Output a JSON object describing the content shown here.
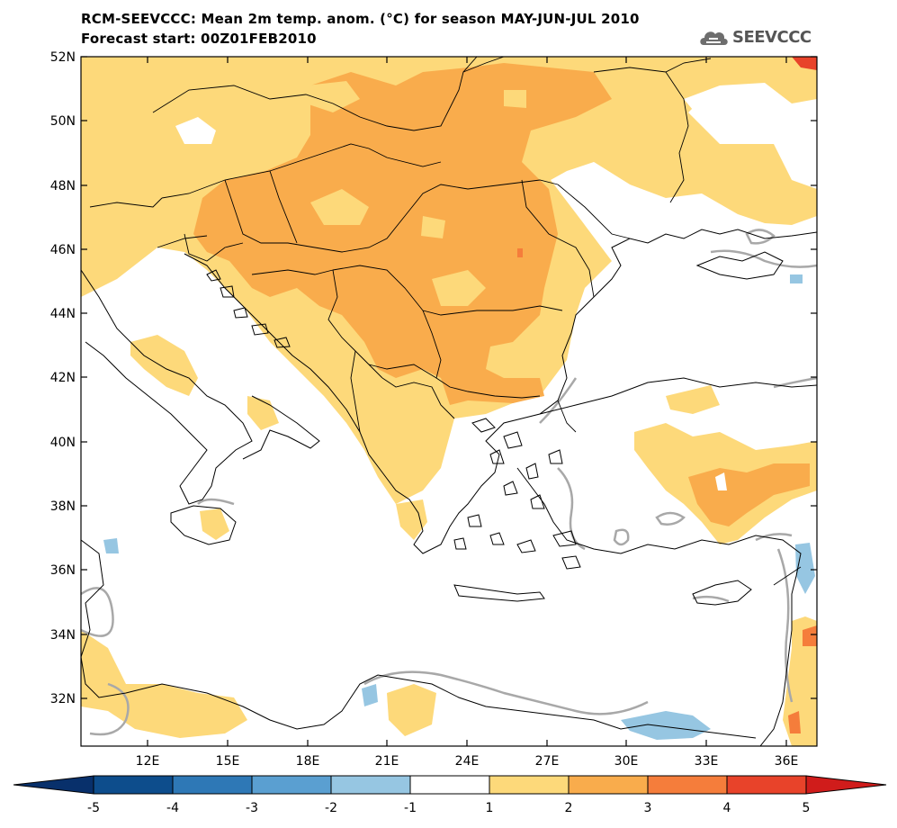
{
  "header": {
    "title_line1": "RCM-SEEVCCC: Mean 2m temp. anom. (°C) for season MAY-JUN-JUL 2010",
    "title_line2": "Forecast start: 00Z01FEB2010",
    "logo_text": "SEEVCCC"
  },
  "map": {
    "lat_ticks": [
      "52N",
      "50N",
      "48N",
      "46N",
      "44N",
      "42N",
      "40N",
      "38N",
      "36N",
      "34N",
      "32N"
    ],
    "lon_ticks": [
      "12E",
      "15E",
      "18E",
      "21E",
      "24E",
      "27E",
      "30E",
      "33E",
      "36E"
    ],
    "lat_range": [
      30.6,
      52
    ],
    "lon_range": [
      9.5,
      37.2
    ]
  },
  "colorbar": {
    "labels": [
      "-5",
      "-4",
      "-3",
      "-2",
      "-1",
      "1",
      "2",
      "3",
      "4",
      "5"
    ],
    "colors": [
      "#0d4d8c",
      "#2e78b6",
      "#5a9fd1",
      "#96c6e2",
      "#ffffff",
      "#fdd97a",
      "#f9ac4c",
      "#f57d3b",
      "#e8432a"
    ],
    "underflow_color": "#08306b",
    "overflow_color": "#d01c1b"
  },
  "legend_colors": {
    "land_border": "#000000",
    "contour_gray": "#a8a8a8",
    "anom_1_2": "#fdd97a",
    "anom_2_3": "#f9ac4c",
    "anom_3_4": "#f57d3b",
    "anom_4_5": "#e8432a",
    "anom_-2_-1": "#96c6e2"
  }
}
